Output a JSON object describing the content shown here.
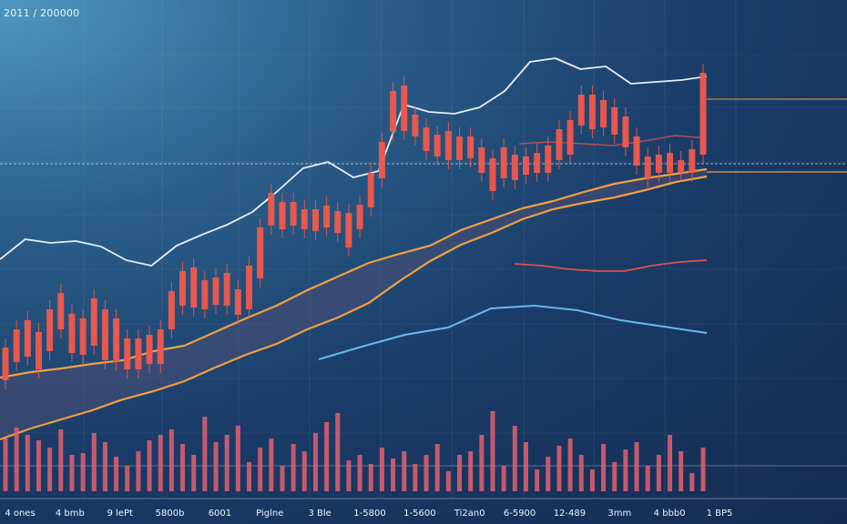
{
  "header": {
    "label": "2011 / 200000"
  },
  "chart_data": {
    "type": "candlestick",
    "title": "",
    "x_tick_labels": [
      "4 ones",
      "4 bmb",
      "9 lePt",
      "5800b",
      "6001",
      "Piglne",
      "3 Ble",
      "1-5800",
      "1-5600",
      "Ti2an0",
      "6-5900",
      "12-489",
      "3mm",
      "4 bbb0",
      "1 BP5"
    ],
    "colors": {
      "candle": "#f0584c",
      "close_line": "#e7eef8",
      "ma_fast": "#f0a040",
      "ma_slow": "#f0a040",
      "ma_long": "#6ab7ee",
      "band_fill": "#4a4f75",
      "h_line_1": "#c28a45",
      "h_line_2": "#c9cfd6",
      "h_line_3": "#f0a040",
      "h_line_red": "#d9534f",
      "volume": "#e46070",
      "baseline": "#7c8ca0"
    },
    "series": [
      {
        "role": "close_line",
        "values": [
          285,
          263,
          267,
          265,
          271,
          286,
          292,
          270,
          258,
          247,
          233,
          210,
          185,
          178,
          195,
          188,
          115,
          123,
          125,
          118,
          100,
          68,
          64,
          76,
          73,
          92,
          90,
          88,
          84
        ]
      },
      {
        "role": "ma_fast",
        "values": [
          415,
          409,
          405,
          400,
          396,
          386,
          380,
          365,
          350,
          336,
          319,
          304,
          289,
          279,
          270,
          253,
          241,
          229,
          221,
          211,
          202,
          196,
          191,
          186
        ]
      },
      {
        "role": "ma_slow",
        "values": [
          483,
          471,
          461,
          451,
          439,
          430,
          419,
          404,
          390,
          378,
          362,
          349,
          333,
          309,
          287,
          269,
          256,
          241,
          230,
          223,
          217,
          209,
          200,
          194
        ]
      },
      {
        "role": "ma_long",
        "values": [
          395,
          381,
          368,
          360,
          339,
          336,
          341,
          352,
          359,
          366
        ]
      },
      {
        "role": "red_line",
        "values": [
          290,
          292,
          296,
          298,
          298,
          292,
          288,
          286
        ]
      },
      {
        "role": "red_line_short",
        "values": [
          158,
          156,
          158,
          160,
          155,
          149,
          152
        ]
      }
    ],
    "candles": [
      [
        382,
        418
      ],
      [
        362,
        398
      ],
      [
        352,
        392
      ],
      [
        365,
        406
      ],
      [
        340,
        386
      ],
      [
        322,
        362
      ],
      [
        345,
        388
      ],
      [
        350,
        390
      ],
      [
        328,
        380
      ],
      [
        340,
        396
      ],
      [
        350,
        398
      ],
      [
        372,
        406
      ],
      [
        372,
        406
      ],
      [
        368,
        400
      ],
      [
        362,
        400
      ],
      [
        320,
        362
      ],
      [
        298,
        336
      ],
      [
        294,
        338
      ],
      [
        308,
        340
      ],
      [
        305,
        335
      ],
      [
        300,
        336
      ],
      [
        318,
        346
      ],
      [
        292,
        340
      ],
      [
        250,
        306
      ],
      [
        212,
        248
      ],
      [
        222,
        252
      ],
      [
        222,
        248
      ],
      [
        230,
        252
      ],
      [
        230,
        254
      ],
      [
        226,
        250
      ],
      [
        232,
        256
      ],
      [
        234,
        272
      ],
      [
        225,
        252
      ],
      [
        190,
        228
      ],
      [
        156,
        196
      ],
      [
        100,
        145
      ],
      [
        94,
        144
      ],
      [
        126,
        150
      ],
      [
        140,
        166
      ],
      [
        148,
        172
      ],
      [
        144,
        176
      ],
      [
        150,
        176
      ],
      [
        150,
        174
      ],
      [
        162,
        190
      ],
      [
        174,
        210
      ],
      [
        162,
        196
      ],
      [
        170,
        198
      ],
      [
        172,
        192
      ],
      [
        168,
        190
      ],
      [
        160,
        190
      ],
      [
        142,
        176
      ],
      [
        132,
        170
      ],
      [
        104,
        138
      ],
      [
        104,
        142
      ],
      [
        110,
        140
      ],
      [
        118,
        148
      ],
      [
        128,
        162
      ],
      [
        150,
        182
      ],
      [
        172,
        196
      ],
      [
        170,
        190
      ],
      [
        168,
        190
      ],
      [
        176,
        190
      ],
      [
        164,
        190
      ],
      [
        80,
        170
      ]
    ],
    "volume": [
      482,
      470,
      478,
      484,
      492,
      472,
      500,
      498,
      476,
      486,
      502,
      512,
      496,
      484,
      478,
      472,
      488,
      500,
      458,
      486,
      478,
      468,
      508,
      492,
      482,
      512,
      488,
      496,
      476,
      464,
      454,
      506,
      500,
      510,
      492,
      504,
      496,
      510,
      500,
      488,
      518,
      500,
      496,
      478,
      452,
      512,
      468,
      486,
      516,
      502,
      490,
      482,
      500,
      516,
      488,
      508,
      494,
      486,
      512,
      500,
      478,
      496,
      520,
      492
    ]
  }
}
